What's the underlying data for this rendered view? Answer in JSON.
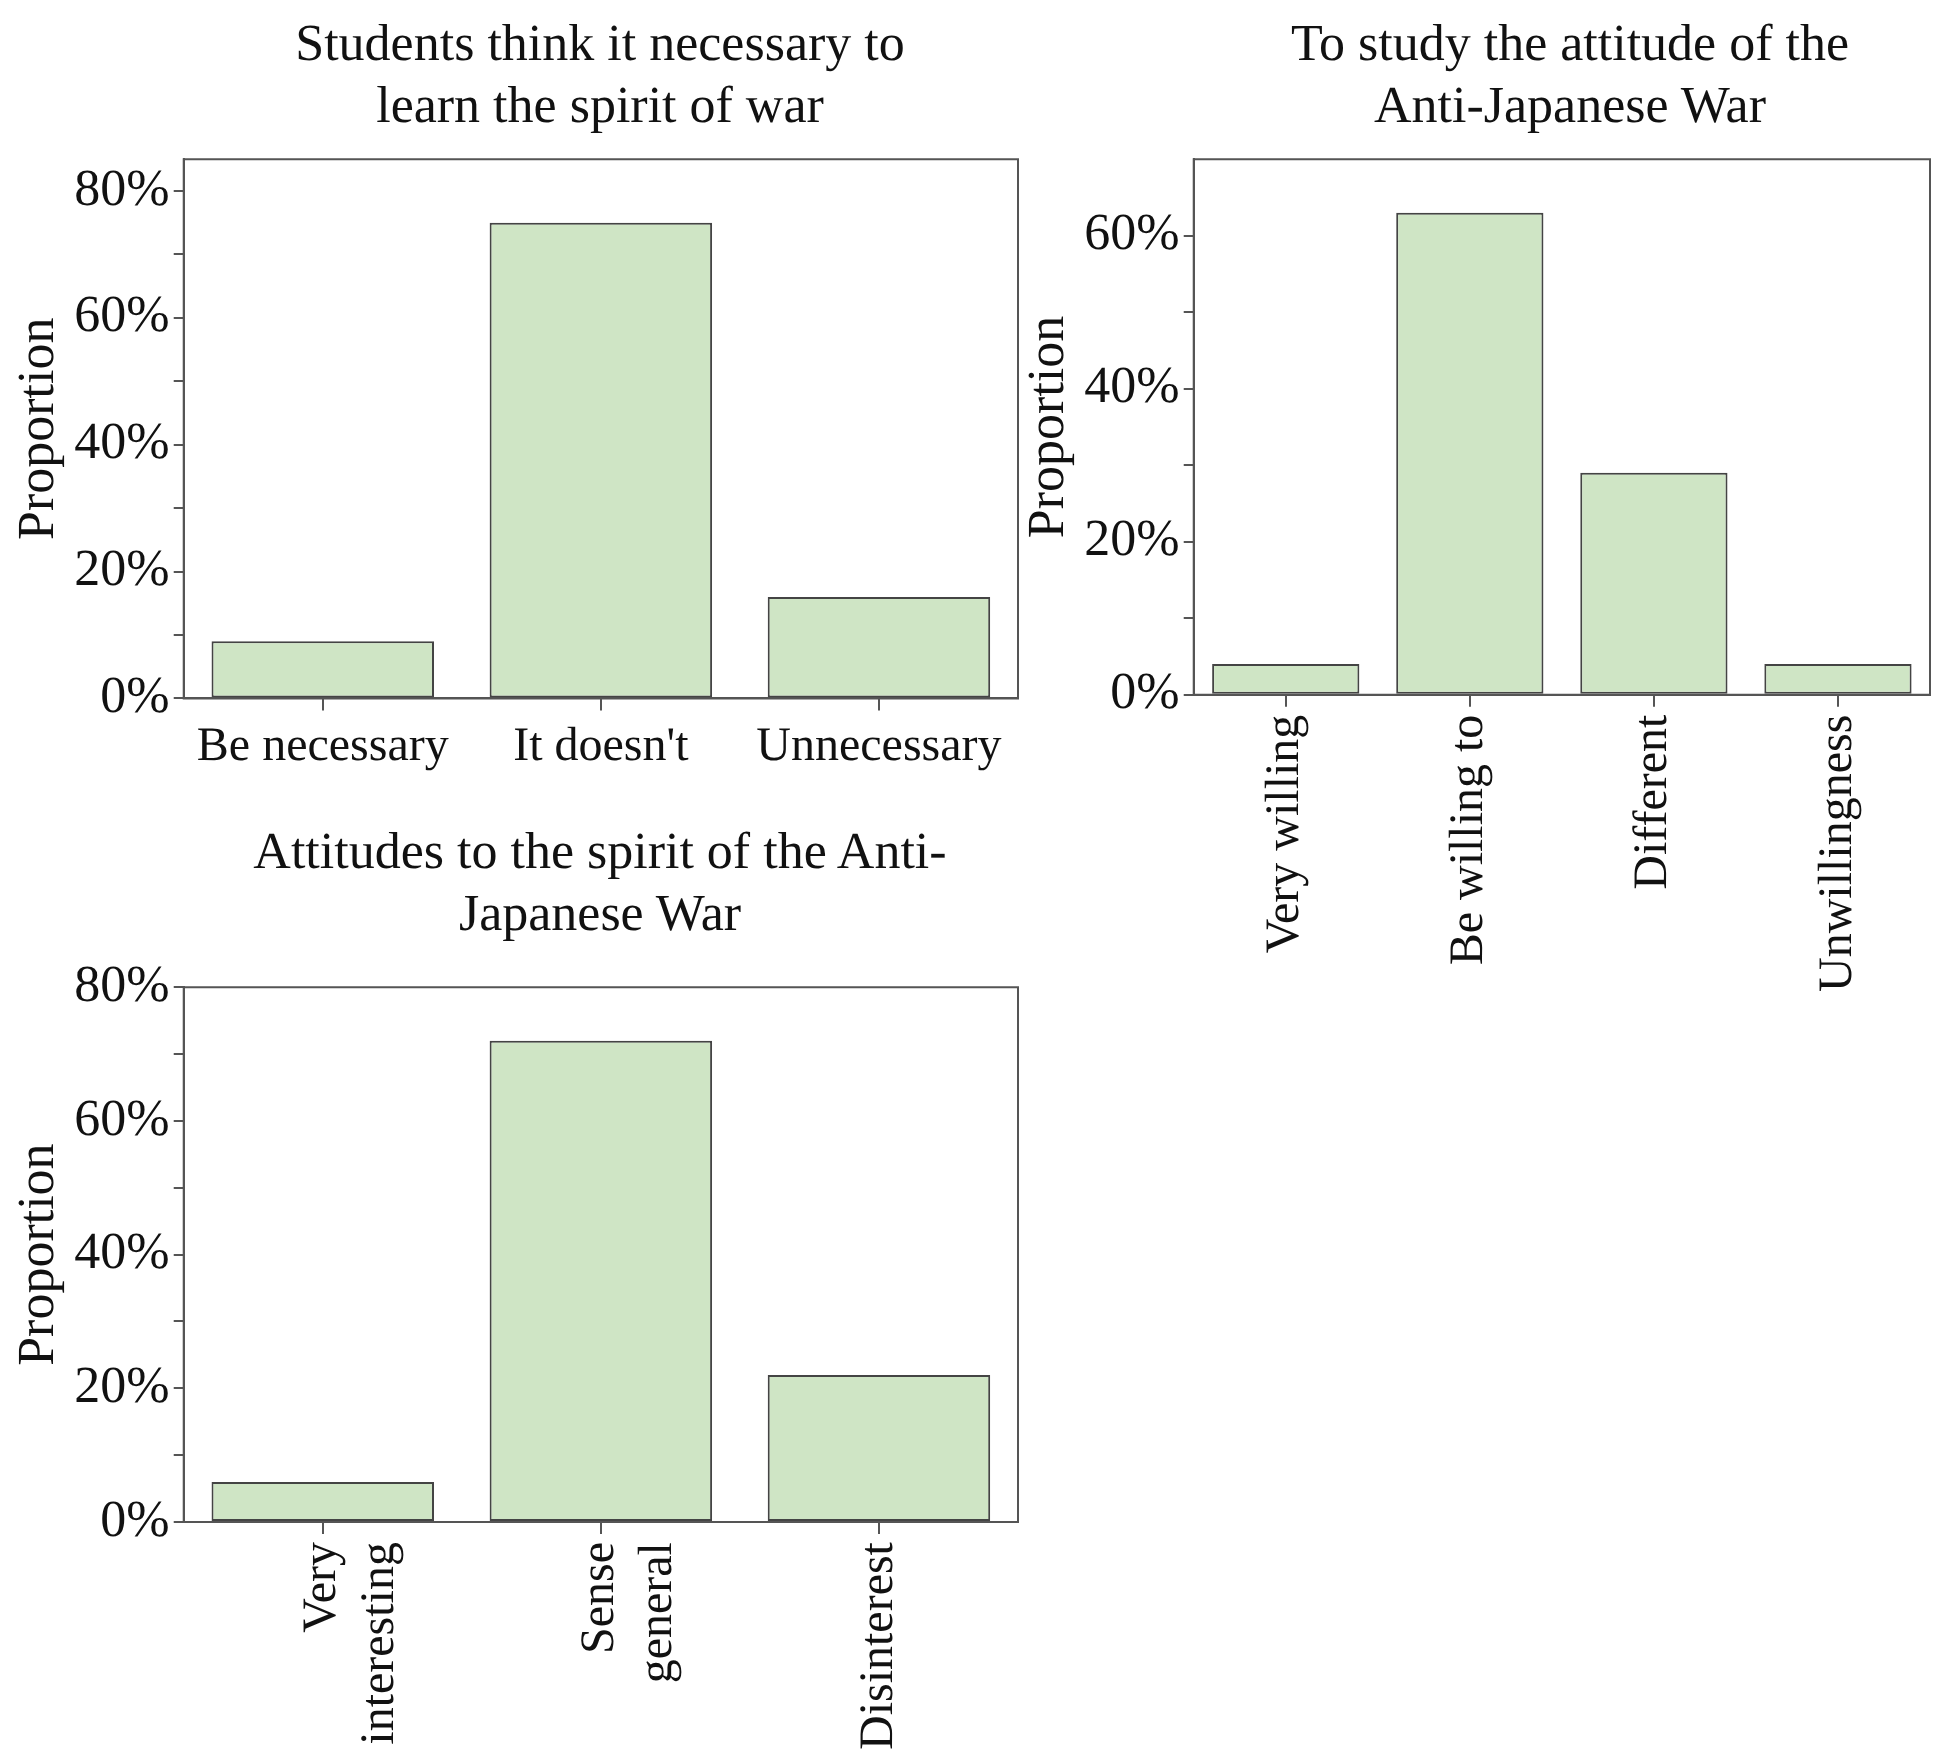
{
  "chart_data": [
    {
      "type": "bar",
      "title": "Students think it necessary to learn the spirit of war",
      "ylabel": "Proportion",
      "categories": [
        "Be necessary",
        "It doesn't",
        "Unnecessary"
      ],
      "values": [
        9,
        75,
        16
      ],
      "color": "#cfe5c5",
      "ylim": [
        0,
        85
      ],
      "yticks": [
        {
          "value": 0,
          "label": "0%"
        },
        {
          "value": 10,
          "label": null
        },
        {
          "value": 20,
          "label": "20%"
        },
        {
          "value": 30,
          "label": null
        },
        {
          "value": 40,
          "label": "40%"
        },
        {
          "value": 50,
          "label": null
        },
        {
          "value": 60,
          "label": "60%"
        },
        {
          "value": 70,
          "label": null
        },
        {
          "value": 80,
          "label": "80%"
        }
      ],
      "grid": false,
      "legend": false
    },
    {
      "type": "bar",
      "title": "To study the attitude of the Anti-Japanese War",
      "ylabel": "Proportion",
      "categories": [
        "Very willing",
        "Be willing to",
        "Different",
        "Unwillingness"
      ],
      "values": [
        4,
        63,
        29,
        4
      ],
      "color": "#cfe5c5",
      "ylim": [
        0,
        70
      ],
      "yticks": [
        {
          "value": 0,
          "label": "0%"
        },
        {
          "value": 10,
          "label": null
        },
        {
          "value": 20,
          "label": "20%"
        },
        {
          "value": 30,
          "label": null
        },
        {
          "value": 40,
          "label": "40%"
        },
        {
          "value": 50,
          "label": null
        },
        {
          "value": 60,
          "label": "60%"
        }
      ],
      "grid": false,
      "legend": false
    },
    {
      "type": "bar",
      "title": "Attitudes to the spirit of the Anti-Japanese War",
      "ylabel": "Proportion",
      "categories": [
        "Very\ninteresting",
        "Sense\ngeneral",
        "Disinterest"
      ],
      "values": [
        6,
        72,
        22
      ],
      "color": "#cfe5c5",
      "ylim": [
        0,
        80
      ],
      "yticks": [
        {
          "value": 0,
          "label": "0%"
        },
        {
          "value": 10,
          "label": null
        },
        {
          "value": 20,
          "label": "20%"
        },
        {
          "value": 30,
          "label": null
        },
        {
          "value": 40,
          "label": "40%"
        },
        {
          "value": 50,
          "label": null
        },
        {
          "value": 60,
          "label": "60%"
        },
        {
          "value": 70,
          "label": null
        },
        {
          "value": 80,
          "label": "80%"
        }
      ],
      "grid": false,
      "legend": false
    }
  ]
}
